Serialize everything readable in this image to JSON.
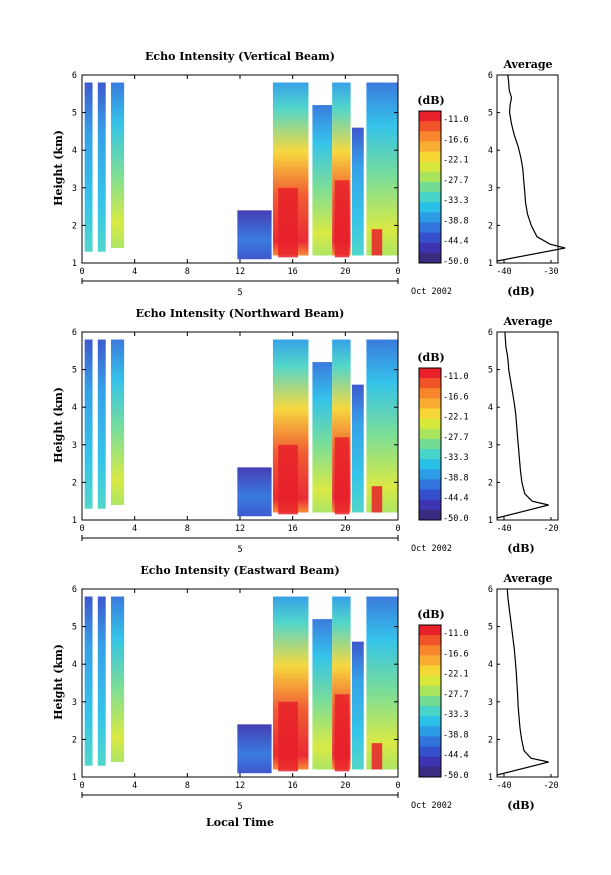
{
  "colorbar": {
    "unit": "(dB)",
    "ticks": [
      "-11.0",
      "-16.6",
      "-22.1",
      "-27.7",
      "-33.3",
      "-38.8",
      "-44.4",
      "-50.0"
    ],
    "colors": [
      "#e8202a",
      "#f05428",
      "#f8862c",
      "#f9ad32",
      "#f6d634",
      "#d8e83a",
      "#a8e45c",
      "#74dc92",
      "#48d4c8",
      "#2ac0e8",
      "#2c9ce6",
      "#3074dc",
      "#3450cc",
      "#3c34b0",
      "#3a2a80"
    ]
  },
  "date_label": "Oct 2002",
  "date_marker": "5",
  "xlabel": "Local Time",
  "avg_title": "Average",
  "avg_xlabel": "(dB)",
  "chart_data": [
    {
      "type": "heatmap",
      "title": "Echo Intensity (Vertical Beam)",
      "ylabel": "Height (km)",
      "x_ticks": [
        "0",
        "4",
        "8",
        "12",
        "16",
        "20",
        "0"
      ],
      "y_ticks": [
        "1",
        "2",
        "3",
        "4",
        "5",
        "6"
      ],
      "xlim": [
        0,
        24
      ],
      "ylim": [
        1,
        6
      ],
      "data_blocks_hours": [
        [
          0.2,
          0.8
        ],
        [
          1.2,
          1.8
        ],
        [
          2.2,
          3.2
        ],
        [
          11.8,
          14.5
        ],
        [
          14.5,
          17.2
        ],
        [
          17.6,
          19.0
        ],
        [
          19.0,
          20.5
        ],
        [
          20.5,
          21.5
        ],
        [
          21.6,
          24.0
        ]
      ],
      "average": {
        "title": "Average",
        "xlabel": "(dB)",
        "x_ticks": [
          "-40",
          "-30"
        ],
        "y_ticks": [
          "1",
          "2",
          "3",
          "4",
          "5",
          "6"
        ],
        "x": [
          -27.0,
          -30.2,
          -33.0,
          -34.2,
          -35.0,
          -35.4,
          -35.6,
          -35.8,
          -36.0,
          -36.4,
          -37.0,
          -37.8,
          -38.4,
          -38.8,
          -38.7,
          -38.4,
          -38.9,
          -39.0,
          -39.2
        ],
        "y": [
          1.4,
          1.5,
          1.7,
          2.0,
          2.3,
          2.6,
          2.9,
          3.2,
          3.5,
          3.8,
          4.1,
          4.4,
          4.7,
          5.0,
          5.2,
          5.4,
          5.6,
          5.8,
          6.0
        ]
      }
    },
    {
      "type": "heatmap",
      "title": "Echo Intensity (Northward Beam)",
      "ylabel": "Height (km)",
      "x_ticks": [
        "0",
        "4",
        "8",
        "12",
        "16",
        "20",
        "0"
      ],
      "y_ticks": [
        "1",
        "2",
        "3",
        "4",
        "5",
        "6"
      ],
      "xlim": [
        0,
        24
      ],
      "ylim": [
        1,
        6
      ],
      "average": {
        "title": "Average",
        "xlabel": "(dB)",
        "x_ticks": [
          "-40",
          "-20"
        ],
        "y_ticks": [
          "1",
          "2",
          "3",
          "4",
          "5",
          "6"
        ],
        "x": [
          -21.0,
          -28.0,
          -31.2,
          -32.4,
          -33.0,
          -33.4,
          -33.8,
          -34.2,
          -34.6,
          -35.0,
          -35.6,
          -36.4,
          -37.2,
          -38.0,
          -38.2,
          -38.6,
          -39.2,
          -39.4,
          -39.6
        ],
        "y": [
          1.4,
          1.5,
          1.7,
          2.0,
          2.3,
          2.6,
          2.9,
          3.2,
          3.5,
          3.8,
          4.1,
          4.4,
          4.7,
          5.0,
          5.2,
          5.4,
          5.6,
          5.8,
          6.0
        ]
      }
    },
    {
      "type": "heatmap",
      "title": "Echo Intensity (Eastward Beam)",
      "ylabel": "Height (km)",
      "x_ticks": [
        "0",
        "4",
        "8",
        "12",
        "16",
        "20",
        "0"
      ],
      "y_ticks": [
        "1",
        "2",
        "3",
        "4",
        "5",
        "6"
      ],
      "xlim": [
        0,
        24
      ],
      "ylim": [
        1,
        6
      ],
      "average": {
        "title": "Average",
        "xlabel": "(dB)",
        "x_ticks": [
          "-40",
          "-20"
        ],
        "y_ticks": [
          "1",
          "2",
          "3",
          "4",
          "5",
          "6"
        ],
        "x": [
          -21.0,
          -28.5,
          -31.5,
          -32.5,
          -33.2,
          -33.6,
          -34.0,
          -34.2,
          -34.5,
          -34.8,
          -35.2,
          -35.6,
          -36.2,
          -36.8,
          -37.2,
          -37.6,
          -38.0,
          -38.4,
          -38.6
        ],
        "y": [
          1.4,
          1.5,
          1.7,
          2.0,
          2.3,
          2.6,
          2.9,
          3.2,
          3.5,
          3.8,
          4.1,
          4.4,
          4.7,
          5.0,
          5.2,
          5.4,
          5.6,
          5.8,
          6.0
        ]
      }
    }
  ]
}
